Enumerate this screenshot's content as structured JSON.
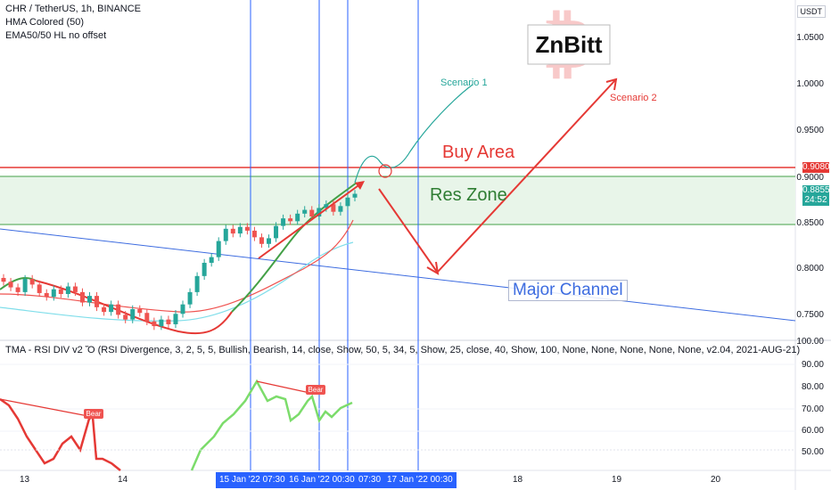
{
  "header": {
    "symbol_line": "CHR / TetherUS, 1h, BINANCE",
    "indicator1": "HMA Colored (50)",
    "indicator2": "EMA50/50 HL no offset"
  },
  "currency_label": "USDT",
  "watermark": "ZnBitt",
  "annotations": {
    "buy_area": "Buy Area",
    "res_zone": "Res Zone",
    "major_channel": "Major Channel",
    "scenario1": "Scenario 1",
    "scenario2": "Scenario 2"
  },
  "price_axis": [
    "1.0500",
    "1.0000",
    "0.9500",
    "0.9000",
    "0.8500",
    "0.8000",
    "0.7500"
  ],
  "price_tags": {
    "buy_level": "0.9080",
    "current": "0.8855",
    "countdown": "24:52"
  },
  "rsi": {
    "title": "TMA - RSI DIV v2 Ὅ (RSI Divergence, 3, 2, 5, 5, Bullish, Bearish, 14, close, Show, 50, 5, 34, 5, Show, 25, close, 40, Show, 100, None, None, None, None, None, v2.04, 2021-AUG-21)",
    "axis": [
      "100.00",
      "90.00",
      "80.00",
      "70.00",
      "60.00",
      "50.00"
    ],
    "bear_label": "Bear"
  },
  "time_axis": {
    "ticks": [
      "13",
      "14",
      "18",
      "19",
      "20"
    ],
    "highlights": [
      "15 Jan '22   07:30",
      "16 Jan '22   00:30",
      "07:30",
      "17 Jan '22   00:30"
    ]
  },
  "colors": {
    "accent": "#2962ff",
    "bullish": "#26a69a",
    "bearish": "#ef5350",
    "buy_line": "#e53935",
    "zone_fill": "#e8f5e9",
    "zone_border": "#43a047",
    "channel": "#3d6ce0"
  },
  "chart_data": {
    "type": "candlestick",
    "series": [
      {
        "name": "CHR / TetherUS",
        "values": [
          0.792,
          0.786,
          0.781,
          0.795,
          0.789,
          0.78,
          0.776,
          0.784,
          0.779,
          0.787,
          0.781,
          0.77,
          0.777,
          0.765,
          0.76,
          0.768,
          0.757,
          0.752,
          0.763,
          0.759,
          0.75,
          0.745,
          0.752,
          0.747,
          0.758,
          0.768,
          0.781,
          0.798,
          0.812,
          0.818,
          0.835,
          0.848,
          0.843,
          0.85,
          0.846,
          0.839,
          0.832,
          0.838,
          0.851,
          0.859,
          0.856,
          0.864,
          0.868,
          0.861,
          0.87,
          0.874,
          0.866,
          0.872,
          0.881,
          0.885
        ]
      }
    ],
    "ylim": [
      0.73,
      1.09
    ],
    "y_ticks": [
      1.05,
      1.0,
      0.95,
      0.9,
      0.85,
      0.8,
      0.75
    ],
    "buy_level": 0.908,
    "res_zone": [
      0.85,
      0.899
    ],
    "current_price": 0.8855
  }
}
